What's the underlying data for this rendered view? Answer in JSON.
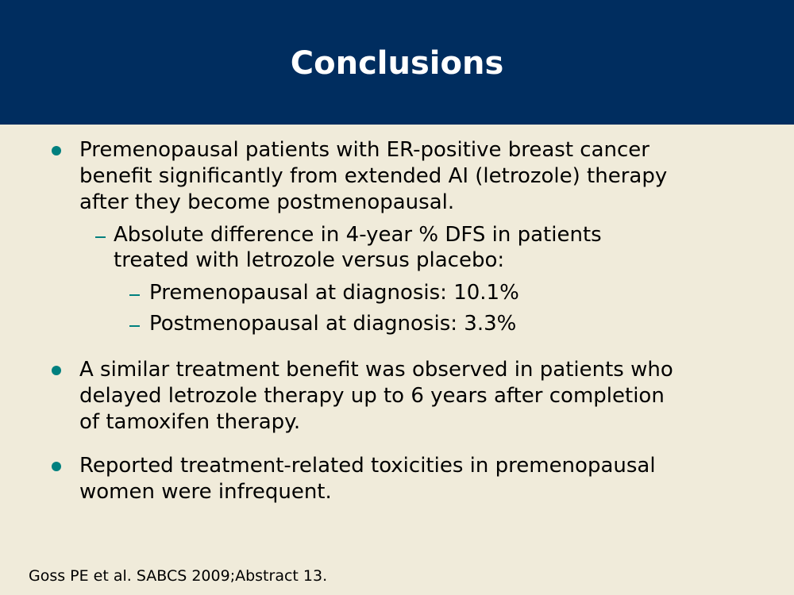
{
  "title": "Conclusions",
  "bullets": [
    {
      "lines": [
        "Premenopausal patients with ER-positive breast cancer",
        "benefit significantly from extended AI (letrozole) therapy",
        "after they become postmenopausal."
      ],
      "sub": {
        "lines": [
          "Absolute difference in 4-year % DFS in patients",
          "treated with letrozole versus placebo:"
        ],
        "items": [
          "Premenopausal at diagnosis: 10.1%",
          "Postmenopausal at diagnosis: 3.3%"
        ]
      }
    },
    {
      "lines": [
        "A similar treatment benefit was observed in patients who",
        "delayed letrozole therapy up to 6 years after completion",
        "of tamoxifen therapy."
      ]
    },
    {
      "lines": [
        "Reported treatment-related toxicities in premenopausal",
        "women were infrequent."
      ]
    }
  ],
  "footer": "Goss PE et al. SABCS 2009;Abstract 13.",
  "colors": {
    "header": "#002d5f",
    "background": "#f0ebda",
    "bullet": "#00807f"
  }
}
